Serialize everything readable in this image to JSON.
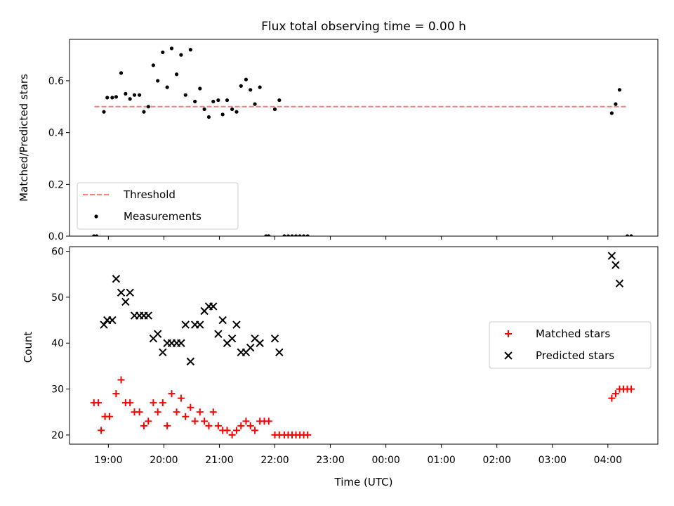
{
  "chart_data": [
    {
      "type": "scatter",
      "title": "Flux total observing time = 0.00 h",
      "xlabel": "",
      "ylabel": "Matched/Predicted stars",
      "xlim": [
        18.3,
        28.9
      ],
      "ylim": [
        0,
        0.76
      ],
      "yticks": [
        0.0,
        0.2,
        0.4,
        0.6
      ],
      "ytick_labels": [
        "0.0",
        "0.2",
        "0.4",
        "0.6"
      ],
      "grid": false,
      "legend_placement": "lower-left",
      "series": [
        {
          "name": "Threshold",
          "kind": "line",
          "style": "dashed",
          "color": "#ff7f7f",
          "x": [
            18.75,
            28.33
          ],
          "y": [
            0.5,
            0.5
          ]
        },
        {
          "name": "Measurements",
          "kind": "scatter",
          "marker": "dot",
          "color": "#000000",
          "x": [
            18.74,
            18.79,
            18.92,
            18.98,
            19.07,
            19.14,
            19.23,
            19.31,
            19.39,
            19.47,
            19.56,
            19.64,
            19.72,
            19.81,
            19.89,
            19.98,
            20.06,
            20.14,
            20.23,
            20.31,
            20.39,
            20.48,
            20.56,
            20.65,
            20.73,
            20.81,
            20.89,
            20.98,
            21.06,
            21.14,
            21.23,
            21.31,
            21.39,
            21.48,
            21.56,
            21.64,
            21.73,
            21.84,
            21.89,
            22.0,
            22.08,
            22.17,
            22.24,
            22.31,
            22.38,
            22.45,
            22.52,
            22.59,
            28.07,
            28.14,
            28.21,
            28.35,
            28.42
          ],
          "y": [
            0.0,
            0.0,
            0.48,
            0.535,
            0.535,
            0.538,
            0.63,
            0.55,
            0.53,
            0.545,
            0.545,
            0.48,
            0.5,
            0.66,
            0.6,
            0.71,
            0.575,
            0.725,
            0.625,
            0.7,
            0.545,
            0.72,
            0.52,
            0.57,
            0.49,
            0.46,
            0.52,
            0.525,
            0.47,
            0.525,
            0.49,
            0.48,
            0.58,
            0.605,
            0.565,
            0.51,
            0.575,
            0.0,
            0.0,
            0.49,
            0.525,
            0.0,
            0.0,
            0.0,
            0.0,
            0.0,
            0.0,
            0.0,
            0.475,
            0.51,
            0.565,
            0.0,
            0.0
          ]
        }
      ]
    },
    {
      "type": "scatter",
      "title": "",
      "xlabel": "Time (UTC)",
      "ylabel": "Count",
      "xlim": [
        18.3,
        28.9
      ],
      "ylim": [
        18,
        61
      ],
      "xticks": [
        19,
        20,
        21,
        22,
        23,
        24,
        25,
        26,
        27,
        28
      ],
      "xtick_labels": [
        "19:00",
        "20:00",
        "21:00",
        "22:00",
        "23:00",
        "00:00",
        "01:00",
        "02:00",
        "03:00",
        "04:00"
      ],
      "yticks": [
        20,
        30,
        40,
        50,
        60
      ],
      "ytick_labels": [
        "20",
        "30",
        "40",
        "50",
        "60"
      ],
      "grid": false,
      "legend_placement": "center-right",
      "series": [
        {
          "name": "Matched stars",
          "kind": "scatter",
          "marker": "plus",
          "color": "#ff0000",
          "x": [
            18.74,
            18.82,
            18.87,
            18.94,
            19.02,
            19.14,
            19.23,
            19.31,
            19.39,
            19.47,
            19.56,
            19.64,
            19.72,
            19.81,
            19.89,
            19.98,
            20.06,
            20.14,
            20.23,
            20.31,
            20.39,
            20.48,
            20.56,
            20.65,
            20.73,
            20.81,
            20.89,
            20.98,
            21.06,
            21.14,
            21.23,
            21.31,
            21.39,
            21.48,
            21.56,
            21.64,
            21.73,
            21.81,
            21.89,
            22.0,
            22.08,
            22.17,
            22.24,
            22.31,
            22.38,
            22.45,
            22.52,
            22.59,
            28.07,
            28.14,
            28.21,
            28.28,
            28.35,
            28.42
          ],
          "y": [
            27,
            27,
            21,
            24,
            24,
            29,
            32,
            27,
            27,
            25,
            25,
            22,
            23,
            27,
            25,
            27,
            22,
            29,
            25,
            28,
            24,
            26,
            23,
            25,
            23,
            22,
            25,
            22,
            21,
            21,
            20,
            21,
            22,
            23,
            22,
            21,
            23,
            23,
            23,
            20,
            20,
            20,
            20,
            20,
            20,
            20,
            20,
            20,
            28,
            29,
            30,
            30,
            30,
            30
          ]
        },
        {
          "name": "Predicted stars",
          "kind": "scatter",
          "marker": "x",
          "color": "#000000",
          "x": [
            18.92,
            18.98,
            19.07,
            19.14,
            19.23,
            19.31,
            19.39,
            19.47,
            19.56,
            19.64,
            19.72,
            19.81,
            19.89,
            19.98,
            20.06,
            20.14,
            20.23,
            20.31,
            20.39,
            20.48,
            20.56,
            20.65,
            20.73,
            20.81,
            20.89,
            20.98,
            21.06,
            21.14,
            21.23,
            21.31,
            21.39,
            21.48,
            21.56,
            21.64,
            21.73,
            22.0,
            22.08,
            28.07,
            28.14,
            28.21
          ],
          "y": [
            44,
            45,
            45,
            54,
            51,
            49,
            51,
            46,
            46,
            46,
            46,
            41,
            42,
            38,
            40,
            40,
            40,
            40,
            44,
            36,
            44,
            44,
            47,
            48,
            48,
            42,
            45,
            40,
            41,
            44,
            38,
            38,
            39,
            41,
            40,
            41,
            38,
            59,
            57,
            53
          ]
        }
      ]
    }
  ]
}
